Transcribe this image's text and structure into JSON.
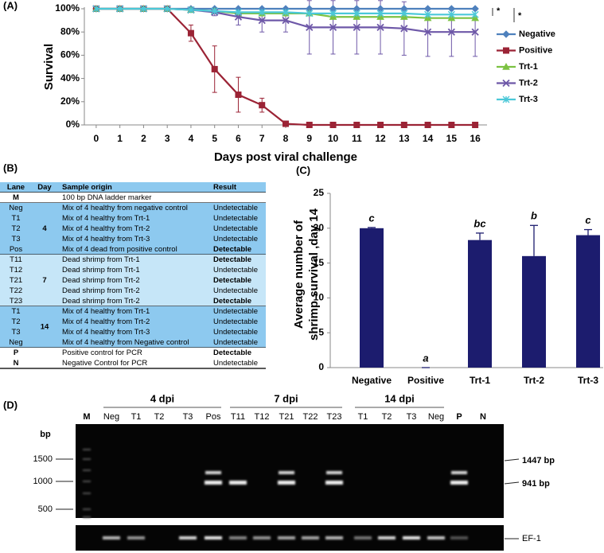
{
  "panel_labels": [
    "(A)",
    "(B)",
    "(C)",
    "(D)"
  ],
  "chart_data": [
    {
      "type": "line",
      "x_label": "Days post viral challenge",
      "y_label": "Survival",
      "x": [
        0,
        1,
        2,
        3,
        4,
        5,
        6,
        7,
        8,
        9,
        10,
        11,
        12,
        13,
        14,
        15,
        16
      ],
      "xlim": [
        -0.5,
        16.5
      ],
      "xticks": [
        0,
        1,
        2,
        3,
        4,
        5,
        6,
        7,
        8,
        9,
        10,
        11,
        12,
        13,
        14,
        15,
        16
      ],
      "ylim": [
        0,
        100
      ],
      "yticks": [
        {
          "value": 0,
          "label": "0%"
        },
        {
          "value": 20,
          "label": "20%"
        },
        {
          "value": 40,
          "label": "40%"
        },
        {
          "value": 60,
          "label": "60%"
        },
        {
          "value": 80,
          "label": "80%"
        },
        {
          "value": 100,
          "label": "100%"
        }
      ],
      "legend": "right",
      "series": [
        {
          "name": "Negative",
          "color": "#4f81bd",
          "marker": "diamond",
          "values": [
            100,
            100,
            100,
            100,
            100,
            100,
            100,
            100,
            100,
            100,
            100,
            100,
            100,
            100,
            100,
            100,
            100
          ]
        },
        {
          "name": "Positive",
          "color": "#9b2335",
          "marker": "square",
          "values": [
            100,
            100,
            100,
            100,
            79,
            48,
            26,
            17,
            1,
            0,
            0,
            0,
            0,
            0,
            0,
            0,
            0
          ],
          "errors": [
            0,
            0,
            0,
            0,
            7,
            20,
            15,
            6,
            1,
            0,
            0,
            0,
            0,
            0,
            0,
            0,
            0
          ]
        },
        {
          "name": "Trt-1",
          "color": "#7cc242",
          "marker": "triangle",
          "values": [
            100,
            100,
            100,
            100,
            99,
            98,
            96,
            96,
            96,
            96,
            93,
            93,
            93,
            93,
            92,
            92,
            92
          ]
        },
        {
          "name": "Trt-2",
          "color": "#6e58a8",
          "marker": "cross",
          "values": [
            100,
            100,
            100,
            100,
            99,
            97,
            93,
            90,
            90,
            84,
            84,
            84,
            84,
            83,
            80,
            80,
            80
          ],
          "errors": [
            0,
            0,
            0,
            0,
            1,
            3,
            7,
            10,
            10,
            23,
            23,
            23,
            23,
            23,
            21,
            21,
            21
          ]
        },
        {
          "name": "Trt-3",
          "color": "#4bc8d8",
          "marker": "star",
          "values": [
            100,
            100,
            100,
            100,
            99,
            98,
            97,
            97,
            97,
            96,
            96,
            96,
            96,
            96,
            95,
            95,
            95
          ]
        }
      ],
      "annotations": [
        "*",
        "*"
      ]
    },
    {
      "type": "bar",
      "y_label": [
        "Average number of",
        "shrimp survival ,day 14"
      ],
      "categories": [
        "Negative",
        "Positive",
        "Trt-1",
        "Trt-2",
        "Trt-3"
      ],
      "values": [
        20,
        0,
        18.3,
        16,
        19
      ],
      "errors": [
        0.1,
        0,
        1,
        4.4,
        0.8
      ],
      "letters": [
        "c",
        "a",
        "bc",
        "b",
        "c"
      ],
      "color": "#1c1c6e",
      "ylim": [
        0,
        25
      ],
      "yticks": [
        0,
        5,
        10,
        15,
        20,
        25
      ]
    }
  ],
  "table": {
    "columns": [
      "Lane",
      "Day",
      "Sample origin",
      "Result"
    ],
    "groups": [
      {
        "rows": [
          {
            "lane": "M",
            "origin": "100 bp DNA ladder marker"
          }
        ]
      },
      {
        "day": "4",
        "rows": [
          {
            "lane": "Neg",
            "origin": "Mix of 4 healthy from negative control",
            "result": "Undetectable"
          },
          {
            "lane": "T1",
            "origin": "Mix of 4 healthy from Trt-1",
            "result": "Undetectable"
          },
          {
            "lane": "T2",
            "origin": "Mix of 4 healthy from Trt-2",
            "result": "Undetectable"
          },
          {
            "lane": "T3",
            "origin": "Mix of 4 healthy from Trt-3",
            "result": "Undetectable"
          },
          {
            "lane": "Pos",
            "origin": "Mix of 4 dead from positive control",
            "result": "Detectable",
            "bold": true
          }
        ]
      },
      {
        "day": "7",
        "rows": [
          {
            "lane": "T11",
            "origin": "Dead shrimp from Trt-1",
            "result": "Detectable",
            "bold": true
          },
          {
            "lane": "T12",
            "origin": "Dead shrimp from Trt-1",
            "result": "Undetectable"
          },
          {
            "lane": "T21",
            "origin": "Dead shrimp from Trt-2",
            "result": "Detectable",
            "bold": true
          },
          {
            "lane": "T22",
            "origin": "Dead shrimp from Trt-2",
            "result": "Undetectable"
          },
          {
            "lane": "T23",
            "origin": "Dead shrimp from Trt-2",
            "result": "Detectable",
            "bold": true
          }
        ]
      },
      {
        "day": "14",
        "rows": [
          {
            "lane": "T1",
            "origin": "Mix of 4 healthy from Trt-1",
            "result": "Undetectable"
          },
          {
            "lane": "T2",
            "origin": "Mix of 4 healthy from Trt-2",
            "result": "Undetectable"
          },
          {
            "lane": "T3",
            "origin": "Mix of 4 healthy from Trt-3",
            "result": "Undetectable"
          },
          {
            "lane": "Neg",
            "origin": "Mix of 4 healthy from Negative control",
            "result": "Undetectable"
          }
        ]
      },
      {
        "rows": [
          {
            "lane": "P",
            "origin": "Positive control for PCR",
            "result": "Detectable",
            "bold": true
          },
          {
            "lane": "N",
            "origin": "Negative Control for PCR",
            "result": "Undetectable"
          }
        ]
      }
    ]
  },
  "gel": {
    "groups": [
      "4 dpi",
      "7 dpi",
      "14 dpi"
    ],
    "lanes": [
      "M",
      "Neg",
      "T1",
      "T2",
      "T3",
      "Pos",
      "T11",
      "T12",
      "T21",
      "T22",
      "T23",
      "T1",
      "T2",
      "T3",
      "Neg",
      "P",
      "N"
    ],
    "y_label": "bp",
    "size_markers": [
      "1500",
      "1000",
      "500"
    ],
    "band_labels": [
      "1447 bp",
      "941 bp"
    ],
    "loading_label": "EF-1"
  }
}
